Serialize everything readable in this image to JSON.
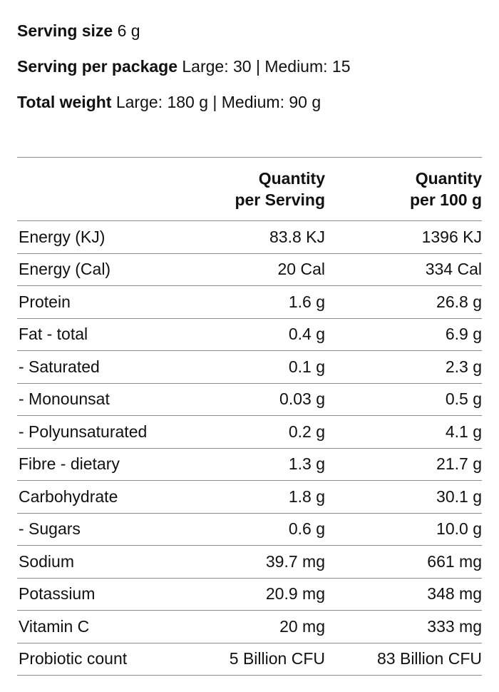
{
  "info": [
    {
      "label": "Serving size",
      "value": "6 g"
    },
    {
      "label": "Serving per package",
      "value": "Large: 30 | Medium: 15"
    },
    {
      "label": "Total weight",
      "value": "Large: 180 g | Medium: 90 g"
    }
  ],
  "table": {
    "headers": {
      "serving": [
        "Quantity",
        "per Serving"
      ],
      "per100": [
        "Quantity",
        "per 100 g"
      ]
    },
    "rows": [
      {
        "name": "Energy (KJ)",
        "serving": "83.8 KJ",
        "per100": "1396 KJ"
      },
      {
        "name": "Energy (Cal)",
        "serving": "20 Cal",
        "per100": "334 Cal"
      },
      {
        "name": "Protein",
        "serving": "1.6 g",
        "per100": "26.8 g"
      },
      {
        "name": "Fat - total",
        "serving": "0.4 g",
        "per100": "6.9 g"
      },
      {
        "name": "- Saturated",
        "serving": "0.1 g",
        "per100": "2.3 g"
      },
      {
        "name": "- Monounsat",
        "serving": "0.03 g",
        "per100": "0.5 g"
      },
      {
        "name": "- Polyunsaturated",
        "serving": "0.2 g",
        "per100": "4.1 g"
      },
      {
        "name": "Fibre - dietary",
        "serving": "1.3 g",
        "per100": "21.7 g"
      },
      {
        "name": "Carbohydrate",
        "serving": "1.8 g",
        "per100": "30.1 g"
      },
      {
        "name": "- Sugars",
        "serving": "0.6 g",
        "per100": "10.0 g"
      },
      {
        "name": "Sodium",
        "serving": "39.7 mg",
        "per100": "661 mg"
      },
      {
        "name": "Potassium",
        "serving": "20.9 mg",
        "per100": "348 mg"
      },
      {
        "name": "Vitamin C",
        "serving": "20 mg",
        "per100": "333 mg"
      },
      {
        "name": "Probiotic count",
        "serving": "5 Billion CFU",
        "per100": "83 Billion CFU"
      }
    ]
  }
}
